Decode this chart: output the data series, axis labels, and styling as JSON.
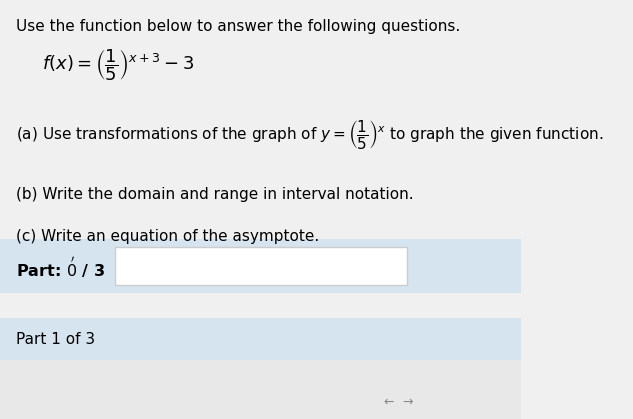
{
  "title_text": "Use the function below to answer the following questions.",
  "function_label": "f(x)=\\left(\\frac{1}{5}\\right)^{x+3}-3",
  "part_a_text": "(a) Use transformations of the graph of $y=\\left(\\dfrac{1}{5}\\right)^{x}$ to graph the given function.",
  "part_b_text": "(b) Write the domain and range in interval notation.",
  "part_c_text": "(c) Write an equation of the asymptote.",
  "part_progress_label": "Part: 0",
  "part_progress_denom": "/ 3",
  "part_1_label": "Part 1 of 3",
  "bg_color": "#f0f0f0",
  "white_bg": "#ffffff",
  "panel_color_top": "#d6e4f0",
  "panel_color_bottom": "#d6e4f0",
  "title_fontsize": 11,
  "body_fontsize": 11
}
